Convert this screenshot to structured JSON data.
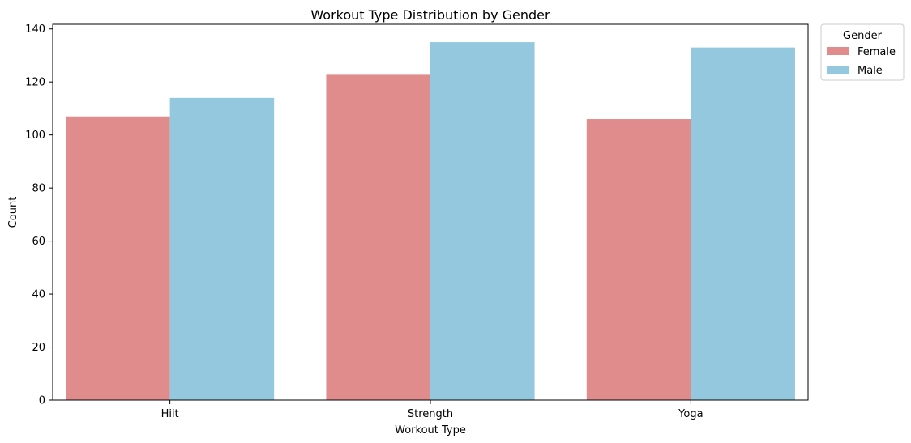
{
  "chart_data": {
    "type": "bar",
    "title": "Workout Type Distribution by Gender",
    "xlabel": "Workout Type",
    "ylabel": "Count",
    "categories": [
      "Hiit",
      "Strength",
      "Yoga"
    ],
    "series": [
      {
        "name": "Female",
        "values": [
          107,
          123,
          106
        ],
        "color": "#e08b8c"
      },
      {
        "name": "Male",
        "values": [
          114,
          135,
          133
        ],
        "color": "#93c8df"
      }
    ],
    "ylim": [
      0,
      141.75
    ],
    "yticks": [
      0,
      20,
      40,
      60,
      80,
      100,
      120,
      140
    ],
    "grid": false,
    "legend": {
      "title": "Gender",
      "placement": "outside-top-right"
    }
  }
}
